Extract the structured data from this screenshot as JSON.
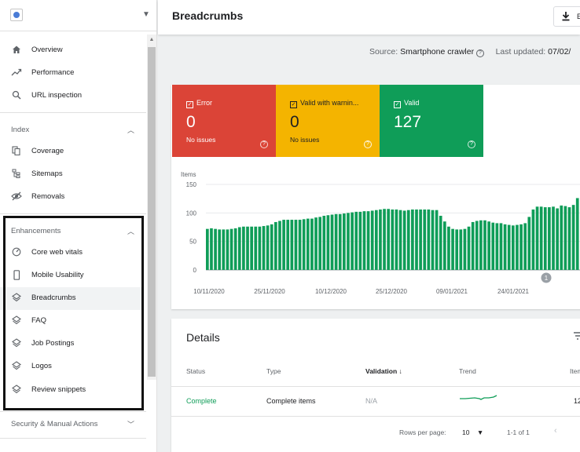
{
  "sidebar": {
    "nav": [
      {
        "label": "Overview",
        "icon": "home-icon"
      },
      {
        "label": "Performance",
        "icon": "trending-up-icon"
      },
      {
        "label": "URL inspection",
        "icon": "search-icon"
      }
    ],
    "index": {
      "heading": "Index",
      "items": [
        {
          "label": "Coverage",
          "icon": "coverage-icon"
        },
        {
          "label": "Sitemaps",
          "icon": "sitemap-icon"
        },
        {
          "label": "Removals",
          "icon": "eye-off-icon"
        }
      ]
    },
    "enhancements": {
      "heading": "Enhancements",
      "items": [
        {
          "label": "Core web vitals",
          "icon": "gauge-icon"
        },
        {
          "label": "Mobile Usability",
          "icon": "phone-icon"
        },
        {
          "label": "Breadcrumbs",
          "icon": "layers-icon",
          "active": true
        },
        {
          "label": "FAQ",
          "icon": "layers-icon"
        },
        {
          "label": "Job Postings",
          "icon": "layers-icon"
        },
        {
          "label": "Logos",
          "icon": "layers-icon"
        },
        {
          "label": "Review snippets",
          "icon": "layers-icon"
        }
      ]
    },
    "security": {
      "heading": "Security & Manual Actions"
    }
  },
  "header": {
    "title": "Breadcrumbs",
    "export_label": "E"
  },
  "meta": {
    "source_prefix": "Source:",
    "source_value": "Smartphone crawler",
    "updated_prefix": "Last updated:",
    "updated_value": "07/02/"
  },
  "tiles": {
    "error": {
      "label": "Error",
      "value": "0",
      "sub": "No issues",
      "color": "#db4437"
    },
    "warning": {
      "label": "Valid with warnin...",
      "value": "0",
      "sub": "No issues",
      "color": "#f4b400"
    },
    "valid": {
      "label": "Valid",
      "value": "127",
      "color": "#0f9d58"
    }
  },
  "chart_data": {
    "type": "bar",
    "ylabel": "Items",
    "ylim": [
      0,
      150
    ],
    "yticks": [
      0,
      50,
      100,
      150
    ],
    "x_tick_labels": [
      "10/11/2020",
      "25/11/2020",
      "10/12/2020",
      "25/12/2020",
      "09/01/2021",
      "24/01/2021"
    ],
    "annotation": "1",
    "color": "#0f9d58",
    "values": [
      72,
      73,
      72,
      71,
      71,
      71,
      72,
      73,
      75,
      76,
      76,
      76,
      76,
      76,
      77,
      78,
      80,
      84,
      86,
      88,
      88,
      88,
      88,
      88,
      89,
      90,
      90,
      92,
      93,
      95,
      96,
      97,
      98,
      98,
      99,
      100,
      101,
      102,
      102,
      103,
      103,
      104,
      105,
      106,
      107,
      107,
      106,
      106,
      105,
      104,
      105,
      106,
      106,
      106,
      106,
      106,
      105,
      105,
      95,
      85,
      76,
      72,
      71,
      71,
      72,
      76,
      84,
      86,
      87,
      87,
      85,
      83,
      82,
      82,
      80,
      79,
      78,
      79,
      80,
      82,
      93,
      106,
      111,
      111,
      110,
      110,
      111,
      108,
      113,
      112,
      110,
      114,
      126
    ]
  },
  "details": {
    "title": "Details",
    "columns": [
      "Status",
      "Type",
      "Validation",
      "Trend",
      "Item"
    ],
    "rows": [
      {
        "status": "Complete",
        "type": "Complete items",
        "validation": "N/A",
        "items": "12"
      }
    ],
    "rows_per_page_label": "Rows per page:",
    "rows_per_page_value": "10",
    "range_label": "1-1 of 1"
  }
}
